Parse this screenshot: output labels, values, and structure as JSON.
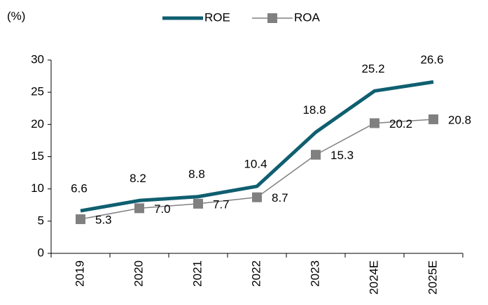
{
  "chart_data": {
    "type": "line",
    "y_label": "(%)",
    "categories": [
      "2019",
      "2020",
      "2021",
      "2022",
      "2023",
      "2024E",
      "2025E"
    ],
    "series": [
      {
        "name": "ROE",
        "color": "#0f5f70",
        "values": [
          6.6,
          8.2,
          8.8,
          10.4,
          18.8,
          25.2,
          26.6
        ]
      },
      {
        "name": "ROA",
        "color": "#808080",
        "marker": "square",
        "values": [
          5.3,
          7.0,
          7.7,
          8.7,
          15.3,
          20.2,
          20.8
        ],
        "value_labels": [
          "5.3",
          "7.0",
          "7.7",
          "8.7",
          "15.3",
          "20.2",
          "20.8"
        ]
      }
    ],
    "ylim": [
      0,
      30
    ],
    "yticks": [
      0,
      5,
      10,
      15,
      20,
      25,
      30
    ],
    "grid": false,
    "legend": "top"
  }
}
